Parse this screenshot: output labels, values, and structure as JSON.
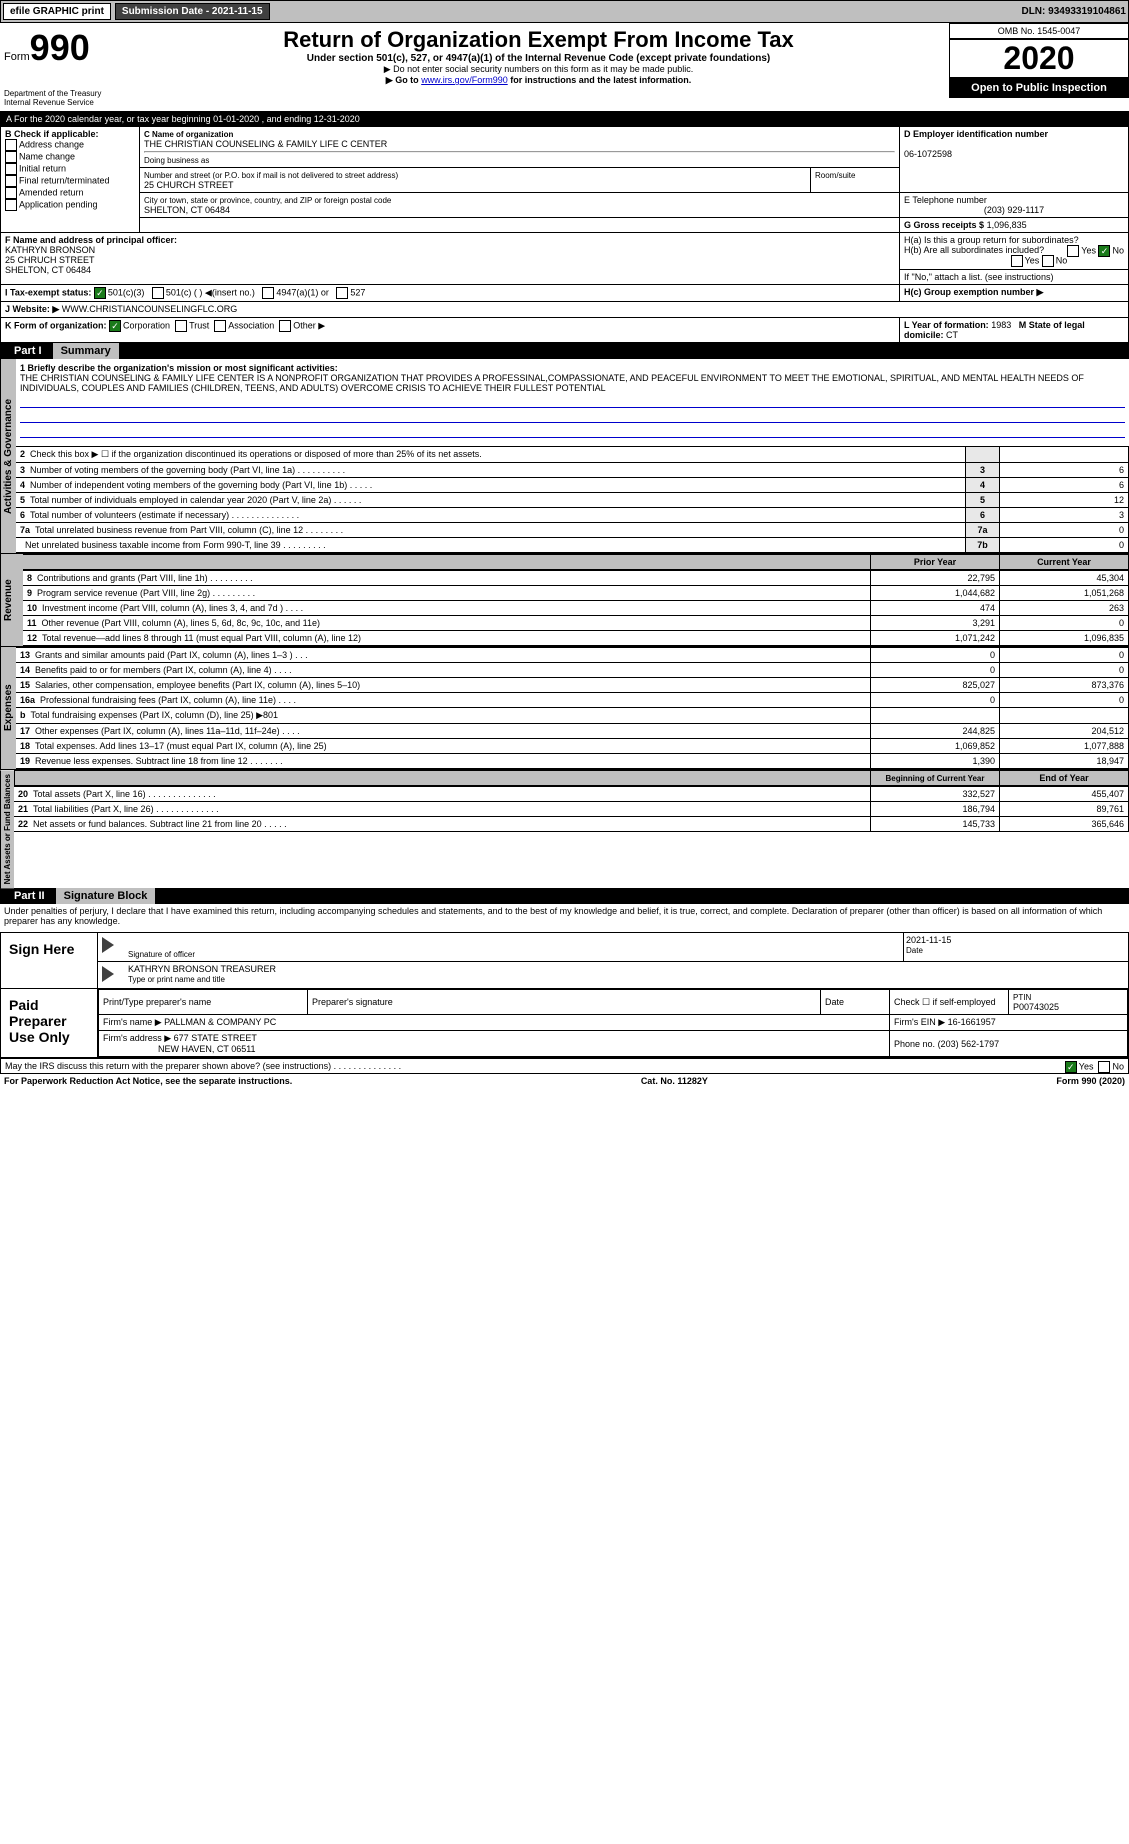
{
  "topbar": {
    "efile": "efile GRAPHIC print",
    "submission": "Submission Date - 2021-11-15",
    "dln": "DLN: 93493319104861"
  },
  "header": {
    "form_label": "Form",
    "form_number": "990",
    "dept": "Department of the Treasury\nInternal Revenue Service",
    "title": "Return of Organization Exempt From Income Tax",
    "subtitle": "Under section 501(c), 527, or 4947(a)(1) of the Internal Revenue Code (except private foundations)",
    "instruction1": "▶ Do not enter social security numbers on this form as it may be made public.",
    "instruction2_pre": "▶ Go to ",
    "instruction2_link": "www.irs.gov/Form990",
    "instruction2_post": " for instructions and the latest information.",
    "omb": "OMB No. 1545-0047",
    "year": "2020",
    "otp": "Open to Public Inspection"
  },
  "section_a": "A For the 2020 calendar year, or tax year beginning 01-01-2020    , and ending 12-31-2020",
  "box_b": {
    "title": "B Check if applicable:",
    "items": [
      "Address change",
      "Name change",
      "Initial return",
      "Final return/terminated",
      "Amended return",
      "Application pending"
    ]
  },
  "box_c": {
    "label": "C Name of organization",
    "name": "THE CHRISTIAN COUNSELING & FAMILY LIFE C CENTER",
    "dba_label": "Doing business as",
    "street_label": "Number and street (or P.O. box if mail is not delivered to street address)",
    "room_label": "Room/suite",
    "street": "25 CHURCH STREET",
    "city_label": "City or town, state or province, country, and ZIP or foreign postal code",
    "city": "SHELTON, CT  06484"
  },
  "box_d": {
    "label": "D Employer identification number",
    "value": "06-1072598"
  },
  "box_e": {
    "label": "E Telephone number",
    "value": "(203) 929-1117"
  },
  "box_g": {
    "label": "G Gross receipts $",
    "value": "1,096,835"
  },
  "box_f": {
    "label": "F  Name and address of principal officer:",
    "name": "KATHRYN BRONSON",
    "street": "25 CHRUCH STREET",
    "city": "SHELTON, CT  06484"
  },
  "box_h": {
    "ha": "H(a)  Is this a group return for subordinates?",
    "hb": "H(b)  Are all subordinates included?",
    "hb_note": "If \"No,\" attach a list. (see instructions)",
    "hc": "H(c)  Group exemption number ▶"
  },
  "tax_status": {
    "label": "I   Tax-exempt status:",
    "opts": [
      "501(c)(3)",
      "501(c) (  ) ◀(insert no.)",
      "4947(a)(1) or",
      "527"
    ]
  },
  "website": {
    "label": "J  Website: ▶",
    "value": "WWW.CHRISTIANCOUNSELINGFLC.ORG"
  },
  "box_k": {
    "label": "K Form of organization:",
    "opts": [
      "Corporation",
      "Trust",
      "Association",
      "Other ▶"
    ]
  },
  "box_l": {
    "label": "L Year of formation:",
    "value": "1983"
  },
  "box_m": {
    "label": "M State of legal domicile:",
    "value": "CT"
  },
  "part1": {
    "header": "Part I",
    "title": "Summary"
  },
  "mission": {
    "label": "1   Briefly describe the organization's mission or most significant activities:",
    "text": "THE CHRISTIAN COUNSELING & FAMILY LIFE CENTER IS A NONPROFIT ORGANIZATION THAT PROVIDES A PROFESSINAL,COMPASSIONATE, AND PEACEFUL ENVIRONMENT TO MEET THE EMOTIONAL, SPIRITUAL, AND MENTAL HEALTH NEEDS OF INDIVIDUALS, COUPLES AND FAMILIES (CHILDREN, TEENS, AND ADULTS) OVERCOME CRISIS TO ACHIEVE THEIR FULLEST POTENTIAL"
  },
  "governance_rows": [
    {
      "n": "2",
      "text": "Check this box ▶ ☐  if the organization discontinued its operations or disposed of more than 25% of its net assets.",
      "box": "",
      "val": ""
    },
    {
      "n": "3",
      "text": "Number of voting members of the governing body (Part VI, line 1a)   .   .   .   .   .   .   .   .   .   .",
      "box": "3",
      "val": "6"
    },
    {
      "n": "4",
      "text": "Number of independent voting members of the governing body (Part VI, line 1b)   .   .   .   .   .",
      "box": "4",
      "val": "6"
    },
    {
      "n": "5",
      "text": "Total number of individuals employed in calendar year 2020 (Part V, line 2a)   .   .   .   .   .   .",
      "box": "5",
      "val": "12"
    },
    {
      "n": "6",
      "text": "Total number of volunteers (estimate if necessary)   .   .   .   .   .   .   .   .   .   .   .   .   .   .",
      "box": "6",
      "val": "3"
    },
    {
      "n": "7a",
      "text": "Total unrelated business revenue from Part VIII, column (C), line 12   .   .   .   .   .   .   .   .",
      "box": "7a",
      "val": "0"
    },
    {
      "n": "",
      "text": "Net unrelated business taxable income from Form 990-T, line 39   .   .   .   .   .   .   .   .   .",
      "box": "7b",
      "val": "0"
    }
  ],
  "col_headers": {
    "prior": "Prior Year",
    "current": "Current Year"
  },
  "revenue_label": "Revenue",
  "revenue_rows": [
    {
      "n": "8",
      "text": "Contributions and grants (Part VIII, line 1h)   .   .   .   .   .   .   .   .   .",
      "prior": "22,795",
      "current": "45,304"
    },
    {
      "n": "9",
      "text": "Program service revenue (Part VIII, line 2g)   .   .   .   .   .   .   .   .   .",
      "prior": "1,044,682",
      "current": "1,051,268"
    },
    {
      "n": "10",
      "text": "Investment income (Part VIII, column (A), lines 3, 4, and 7d )   .   .   .   .",
      "prior": "474",
      "current": "263"
    },
    {
      "n": "11",
      "text": "Other revenue (Part VIII, column (A), lines 5, 6d, 8c, 9c, 10c, and 11e)",
      "prior": "3,291",
      "current": "0"
    },
    {
      "n": "12",
      "text": "Total revenue—add lines 8 through 11 (must equal Part VIII, column (A), line 12)",
      "prior": "1,071,242",
      "current": "1,096,835"
    }
  ],
  "expenses_label": "Expenses",
  "expenses_rows": [
    {
      "n": "13",
      "text": "Grants and similar amounts paid (Part IX, column (A), lines 1–3 )   .   .   .",
      "prior": "0",
      "current": "0"
    },
    {
      "n": "14",
      "text": "Benefits paid to or for members (Part IX, column (A), line 4)   .   .   .   .",
      "prior": "0",
      "current": "0"
    },
    {
      "n": "15",
      "text": "Salaries, other compensation, employee benefits (Part IX, column (A), lines 5–10)",
      "prior": "825,027",
      "current": "873,376"
    },
    {
      "n": "16a",
      "text": "Professional fundraising fees (Part IX, column (A), line 11e)   .   .   .   .",
      "prior": "0",
      "current": "0"
    },
    {
      "n": "b",
      "text": "Total fundraising expenses (Part IX, column (D), line 25) ▶801",
      "prior": "",
      "current": ""
    },
    {
      "n": "17",
      "text": "Other expenses (Part IX, column (A), lines 11a–11d, 11f–24e)   .   .   .   .",
      "prior": "244,825",
      "current": "204,512"
    },
    {
      "n": "18",
      "text": "Total expenses. Add lines 13–17 (must equal Part IX, column (A), line 25)",
      "prior": "1,069,852",
      "current": "1,077,888"
    },
    {
      "n": "19",
      "text": "Revenue less expenses. Subtract line 18 from line 12   .   .   .   .   .   .   .",
      "prior": "1,390",
      "current": "18,947"
    }
  ],
  "net_label": "Net Assets or Fund Balances",
  "net_headers": {
    "begin": "Beginning of Current Year",
    "end": "End of Year"
  },
  "net_rows": [
    {
      "n": "20",
      "text": "Total assets (Part X, line 16)   .   .   .   .   .   .   .   .   .   .   .   .   .   .",
      "prior": "332,527",
      "current": "455,407"
    },
    {
      "n": "21",
      "text": "Total liabilities (Part X, line 26)   .   .   .   .   .   .   .   .   .   .   .   .   .",
      "prior": "186,794",
      "current": "89,761"
    },
    {
      "n": "22",
      "text": "Net assets or fund balances. Subtract line 21 from line 20   .   .   .   .   .",
      "prior": "145,733",
      "current": "365,646"
    }
  ],
  "part2": {
    "header": "Part II",
    "title": "Signature Block"
  },
  "perjury": "Under penalties of perjury, I declare that I have examined this return, including accompanying schedules and statements, and to the best of my knowledge and belief, it is true, correct, and complete. Declaration of preparer (other than officer) is based on all information of which preparer has any knowledge.",
  "sign": {
    "label": "Sign Here",
    "sig_label": "Signature of officer",
    "date": "2021-11-15",
    "date_label": "Date",
    "name": "KATHRYN BRONSON TREASURER",
    "name_label": "Type or print name and title"
  },
  "paid": {
    "label": "Paid Preparer Use Only",
    "cols": [
      "Print/Type preparer's name",
      "Preparer's signature",
      "Date"
    ],
    "check_label": "Check ☐ if self-employed",
    "ptin_label": "PTIN",
    "ptin": "P00743025",
    "firm_name_label": "Firm's name    ▶",
    "firm_name": "PALLMAN & COMPANY PC",
    "firm_ein_label": "Firm's EIN ▶",
    "firm_ein": "16-1661957",
    "firm_addr_label": "Firm's address ▶",
    "firm_addr1": "677 STATE STREET",
    "firm_addr2": "NEW HAVEN, CT  06511",
    "phone_label": "Phone no.",
    "phone": "(203) 562-1797"
  },
  "discuss": "May the IRS discuss this return with the preparer shown above? (see instructions)   .   .   .   .   .   .   .   .   .   .   .   .   .   .",
  "footer": {
    "left": "For Paperwork Reduction Act Notice, see the separate instructions.",
    "center": "Cat. No. 11282Y",
    "right": "Form 990 (2020)"
  },
  "yes": "Yes",
  "no": "No"
}
